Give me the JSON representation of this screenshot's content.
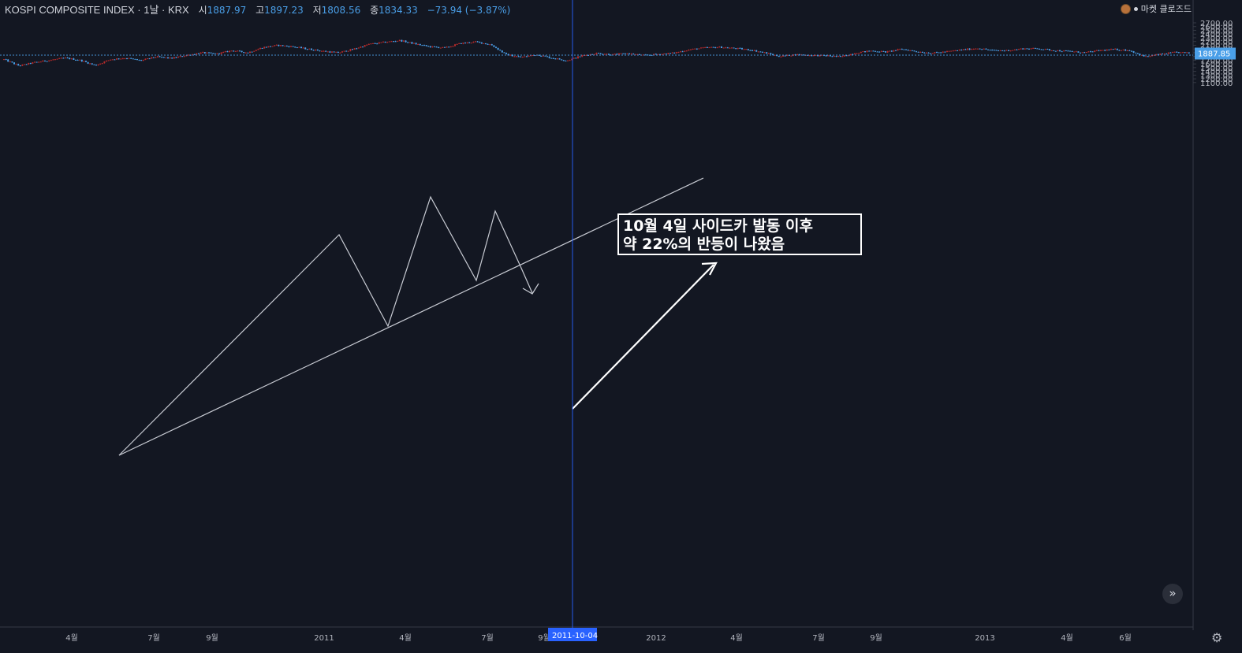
{
  "header": {
    "symbol": "KOSPI COMPOSITE INDEX · 1날 · KRX",
    "open_label": "시",
    "open": "1887.97",
    "high_label": "고",
    "high": "1897.23",
    "low_label": "저",
    "low": "1808.56",
    "close_label": "종",
    "close": "1834.33",
    "change": "−73.94 (−3.87%)"
  },
  "market_status": "마켓 클로즈드",
  "navigation": {
    "scroll_right_label": "»",
    "settings_icon": "gear-icon"
  },
  "colors": {
    "background": "#131722",
    "up": "#b52a2a",
    "down": "#4a9fe8",
    "price_badge": "#4a9fe8",
    "crosshair": "#2962ff"
  },
  "chart_data": {
    "type": "candlestick",
    "y_axis": {
      "ticks": [
        1100,
        1200,
        1300,
        1400,
        1500,
        1600,
        1700,
        1800,
        1900,
        2000,
        2100,
        2200,
        2300,
        2400,
        2500,
        2600,
        2700
      ],
      "tick_labels": [
        "1100.00",
        "1200.00",
        "1300.00",
        "1400.00",
        "1500.00",
        "1600.00",
        "1700.00",
        "1800.00",
        "1900.00",
        "2000.00",
        "2100.00",
        "2200.00",
        "2300.00",
        "2400.00",
        "2500.00",
        "2600.00",
        "2700.00"
      ]
    },
    "x_axis": {
      "labels": [
        "4월",
        "7월",
        "9월",
        "2011",
        "4월",
        "7월",
        "9월",
        "2012",
        "4월",
        "7월",
        "9월",
        "2013",
        "4월",
        "6월"
      ]
    },
    "last_price": "1887.85",
    "last_price_value": 1887.85,
    "crosshair": {
      "date_label": "2011-10-04",
      "price_value": 1834.33
    },
    "series": [
      {
        "date": "2010-02",
        "value": 1720
      },
      {
        "date": "2010-02",
        "value": 1550
      },
      {
        "date": "2010-03",
        "value": 1640
      },
      {
        "date": "2010-04",
        "value": 1700
      },
      {
        "date": "2010-04",
        "value": 1760
      },
      {
        "date": "2010-05",
        "value": 1700
      },
      {
        "date": "2010-05",
        "value": 1560
      },
      {
        "date": "2010-06",
        "value": 1720
      },
      {
        "date": "2010-07",
        "value": 1760
      },
      {
        "date": "2010-07",
        "value": 1690
      },
      {
        "date": "2010-08",
        "value": 1790
      },
      {
        "date": "2010-08",
        "value": 1750
      },
      {
        "date": "2010-09",
        "value": 1830
      },
      {
        "date": "2010-10",
        "value": 1900
      },
      {
        "date": "2010-10",
        "value": 1870
      },
      {
        "date": "2010-11",
        "value": 1960
      },
      {
        "date": "2010-11",
        "value": 1900
      },
      {
        "date": "2010-12",
        "value": 2040
      },
      {
        "date": "2011-01",
        "value": 2100
      },
      {
        "date": "2011-01",
        "value": 2060
      },
      {
        "date": "2011-02",
        "value": 2000
      },
      {
        "date": "2011-02",
        "value": 1940
      },
      {
        "date": "2011-03",
        "value": 1900
      },
      {
        "date": "2011-03",
        "value": 2000
      },
      {
        "date": "2011-04",
        "value": 2130
      },
      {
        "date": "2011-04",
        "value": 2180
      },
      {
        "date": "2011-05",
        "value": 2230
      },
      {
        "date": "2011-05",
        "value": 2140
      },
      {
        "date": "2011-06",
        "value": 2060
      },
      {
        "date": "2011-06",
        "value": 2030
      },
      {
        "date": "2011-07",
        "value": 2150
      },
      {
        "date": "2011-07",
        "value": 2190
      },
      {
        "date": "2011-08",
        "value": 2120
      },
      {
        "date": "2011-08",
        "value": 1850
      },
      {
        "date": "2011-08",
        "value": 1780
      },
      {
        "date": "2011-09",
        "value": 1850
      },
      {
        "date": "2011-09",
        "value": 1760
      },
      {
        "date": "2011-10",
        "value": 1690
      },
      {
        "date": "2011-10",
        "value": 1820
      },
      {
        "date": "2011-10",
        "value": 1890
      },
      {
        "date": "2011-11",
        "value": 1850
      },
      {
        "date": "2011-11",
        "value": 1880
      },
      {
        "date": "2011-12",
        "value": 1830
      },
      {
        "date": "2011-12",
        "value": 1860
      },
      {
        "date": "2012-01",
        "value": 1890
      },
      {
        "date": "2012-02",
        "value": 1980
      },
      {
        "date": "2012-02",
        "value": 2030
      },
      {
        "date": "2012-03",
        "value": 2050
      },
      {
        "date": "2012-03",
        "value": 2020
      },
      {
        "date": "2012-04",
        "value": 1980
      },
      {
        "date": "2012-05",
        "value": 1900
      },
      {
        "date": "2012-05",
        "value": 1800
      },
      {
        "date": "2012-06",
        "value": 1850
      },
      {
        "date": "2012-06",
        "value": 1830
      },
      {
        "date": "2012-07",
        "value": 1820
      },
      {
        "date": "2012-07",
        "value": 1790
      },
      {
        "date": "2012-08",
        "value": 1900
      },
      {
        "date": "2012-08",
        "value": 1950
      },
      {
        "date": "2012-09",
        "value": 1920
      },
      {
        "date": "2012-09",
        "value": 2000
      },
      {
        "date": "2012-10",
        "value": 1930
      },
      {
        "date": "2012-11",
        "value": 1890
      },
      {
        "date": "2012-11",
        "value": 1930
      },
      {
        "date": "2012-12",
        "value": 1980
      },
      {
        "date": "2013-01",
        "value": 2020
      },
      {
        "date": "2013-01",
        "value": 1960
      },
      {
        "date": "2013-02",
        "value": 1960
      },
      {
        "date": "2013-02",
        "value": 2010
      },
      {
        "date": "2013-03",
        "value": 2010
      },
      {
        "date": "2013-03",
        "value": 1960
      },
      {
        "date": "2013-04",
        "value": 1940
      },
      {
        "date": "2013-04",
        "value": 1900
      },
      {
        "date": "2013-05",
        "value": 1960
      },
      {
        "date": "2013-05",
        "value": 1990
      },
      {
        "date": "2013-06",
        "value": 1960
      },
      {
        "date": "2013-06",
        "value": 1790
      },
      {
        "date": "2013-07",
        "value": 1860
      },
      {
        "date": "2013-07",
        "value": 1910
      },
      {
        "date": "2013-08",
        "value": 1888
      }
    ],
    "annotation": {
      "text_line1": "10월 4일 사이드카 발동 이후",
      "text_line2": "약 22%의 반등이 나왔음"
    }
  }
}
